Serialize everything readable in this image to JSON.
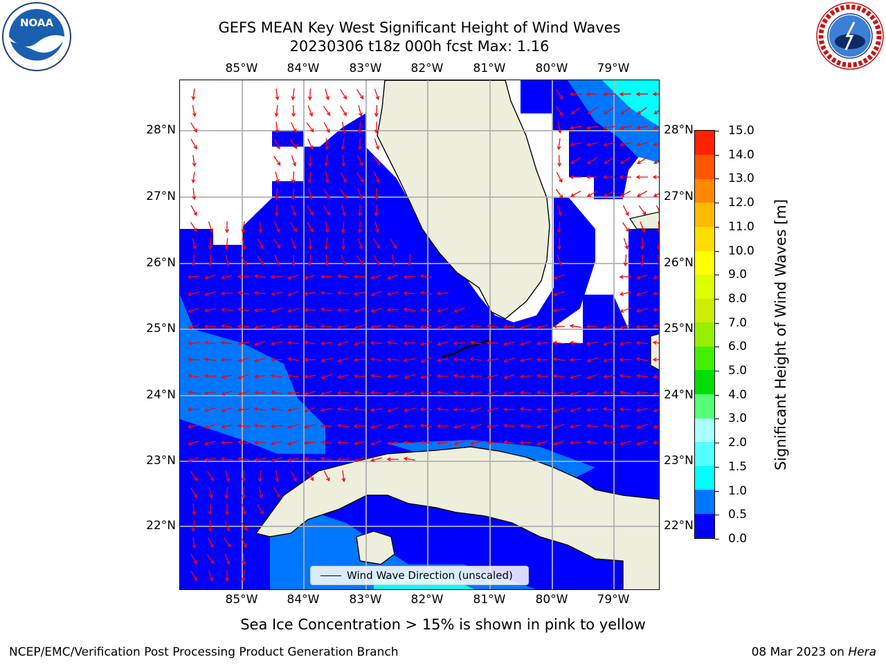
{
  "title_line1": "GEFS MEAN Key West Significant Height of Wind Waves",
  "title_line2": "20230306 t18z 000h fcst   Max: 1.16",
  "logos": {
    "left": "noaa-logo",
    "left_text": "NOAA",
    "right": "nws-logo"
  },
  "map": {
    "lon_labels": [
      "85°W",
      "84°W",
      "83°W",
      "82°W",
      "81°W",
      "80°W",
      "79°W"
    ],
    "lat_labels": [
      "28°N",
      "27°N",
      "26°N",
      "25°N",
      "24°N",
      "23°N",
      "22°N"
    ],
    "legend_label": "Wind Wave Direction (unscaled)",
    "colors": {
      "land": "#eeeedd",
      "wave_0_0_5": "#0000ff",
      "wave_0_5_1_0": "#0077ff",
      "wave_1_0_1_5": "#00ffff",
      "arrow": "#ff0000",
      "grid": "#b0b0b0"
    }
  },
  "colorbar": {
    "title": "Significant Height of Wind Waves [m]",
    "tick_labels": [
      "0.0",
      "0.5",
      "1.0",
      "1.5",
      "2.0",
      "3.0",
      "4.0",
      "5.0",
      "6.0",
      "7.0",
      "8.0",
      "9.0",
      "10.0",
      "11.0",
      "12.0",
      "13.0",
      "14.0",
      "15.0"
    ],
    "colors": [
      "#0000ff",
      "#0077ff",
      "#00ffff",
      "#55ffff",
      "#aaffff",
      "#55ff77",
      "#00dd00",
      "#44ee00",
      "#99ee00",
      "#ccee00",
      "#ddff00",
      "#ffff00",
      "#ffdd00",
      "#ffbb00",
      "#ff8800",
      "#ff5500",
      "#ff2200"
    ]
  },
  "note": "Sea Ice Concentration > 15% is shown in pink to yellow",
  "footer": {
    "left": "NCEP/EMC/Verification Post Processing Product Generation Branch",
    "right_prefix": "08 Mar 2023 on ",
    "right_host": "Hera"
  }
}
